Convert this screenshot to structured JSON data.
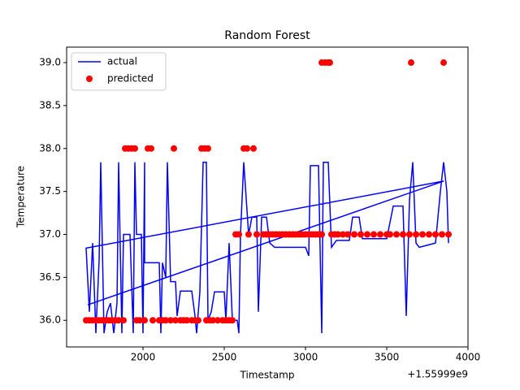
{
  "chart_data": {
    "type": "line",
    "title": "Random Forest",
    "x_label": "Timestamp",
    "y_label": "Temperature",
    "x_offset_label": "+1.55999e9",
    "xlim": [
      1530,
      4000
    ],
    "ylim": [
      35.69,
      39.18
    ],
    "xticks": [
      2000,
      2500,
      3000,
      3500,
      4000
    ],
    "yticks": [
      {
        "value": 36,
        "label": "36.0"
      },
      36.5,
      {
        "value": 37,
        "label": "37.0"
      },
      37.5,
      {
        "value": 38,
        "label": "38.0"
      },
      38.5,
      {
        "value": 39,
        "label": "39.0"
      }
    ],
    "legend": "upper left",
    "series": [
      {
        "name": "actual",
        "type": "line",
        "color": "#0000ff",
        "x": [
          1660,
          3850,
          1650,
          1670,
          1690,
          1710,
          1730,
          1740,
          1760,
          1780,
          1800,
          1820,
          1840,
          1850,
          1870,
          1880,
          1920,
          1940,
          1950,
          1960,
          1990,
          2000,
          2010,
          2010,
          2100,
          2110,
          2120,
          2140,
          2150,
          2170,
          2200,
          2210,
          2230,
          2300,
          2320,
          2330,
          2350,
          2370,
          2390,
          2400,
          2420,
          2440,
          2500,
          2510,
          2530,
          2550,
          2580,
          2590,
          2600,
          2620,
          2650,
          2670,
          2700,
          2710,
          2730,
          2760,
          2780,
          2810,
          3000,
          3020,
          3030,
          3080,
          3100,
          3110,
          3140,
          3160,
          3190,
          3270,
          3290,
          3330,
          3350,
          3500,
          3540,
          3600,
          3620,
          3640,
          3660,
          3680,
          3700,
          3800,
          3830,
          3850,
          3870,
          3880
        ],
        "values": [
          36.18,
          37.62,
          36.84,
          36.1,
          36.9,
          35.85,
          36.7,
          37.84,
          35.85,
          36.1,
          36.2,
          35.85,
          36.2,
          37.84,
          35.85,
          37.0,
          37.0,
          35.85,
          37.84,
          37.0,
          37.0,
          35.85,
          37.84,
          36.67,
          36.67,
          35.85,
          36.67,
          36.5,
          37.84,
          36.45,
          36.45,
          36.05,
          36.34,
          36.34,
          36.05,
          35.85,
          36.33,
          37.84,
          37.84,
          36.0,
          36.1,
          36.33,
          36.33,
          36.0,
          36.9,
          36.0,
          36.0,
          35.85,
          37.0,
          37.84,
          37.0,
          37.2,
          37.2,
          36.1,
          37.2,
          37.2,
          36.9,
          36.85,
          36.85,
          36.75,
          37.8,
          37.8,
          35.85,
          37.84,
          37.84,
          36.85,
          36.93,
          36.93,
          37.2,
          37.2,
          36.95,
          36.95,
          37.33,
          37.33,
          36.05,
          37.4,
          37.84,
          36.9,
          36.85,
          36.9,
          37.5,
          37.84,
          37.5,
          36.9
        ]
      },
      {
        "name": "predicted",
        "type": "scatter",
        "color": "#ff0000",
        "x": [
          1650,
          1670,
          1690,
          1710,
          1730,
          1750,
          1770,
          1790,
          1810,
          1830,
          1850,
          1880,
          1960,
          1980,
          2010,
          2060,
          2100,
          2120,
          2140,
          2170,
          2200,
          2230,
          2250,
          2270,
          2300,
          2320,
          2340,
          2390,
          2410,
          2430,
          2460,
          2490,
          2510,
          2530,
          2550,
          1890,
          1910,
          1930,
          1950,
          2030,
          2050,
          2190,
          2360,
          2380,
          2400,
          2620,
          2640,
          2680,
          2570,
          2590,
          2650,
          2700,
          2740,
          2760,
          2780,
          2800,
          2820,
          2840,
          2860,
          2880,
          2900,
          2920,
          2940,
          2960,
          2980,
          3000,
          3020,
          3040,
          3060,
          3080,
          3100,
          3160,
          3180,
          3200,
          3230,
          3260,
          3300,
          3340,
          3380,
          3420,
          3460,
          3500,
          3520,
          3560,
          3600,
          3640,
          3680,
          3720,
          3760,
          3800,
          3840,
          3880,
          3100,
          3120,
          3140,
          3150,
          3650,
          3850
        ],
        "values": [
          36,
          36,
          36,
          36,
          36,
          36,
          36,
          36,
          36,
          36,
          36,
          36,
          36,
          36,
          36,
          36,
          36,
          36,
          36,
          36,
          36,
          36,
          36,
          36,
          36,
          36,
          36,
          36,
          36,
          36,
          36,
          36,
          36,
          36,
          36,
          38,
          38,
          38,
          38,
          38,
          38,
          38,
          38,
          38,
          38,
          38,
          38,
          38,
          37,
          37,
          37,
          37,
          37,
          37,
          37,
          37,
          37,
          37,
          37,
          37,
          37,
          37,
          37,
          37,
          37,
          37,
          37,
          37,
          37,
          37,
          37,
          37,
          37,
          37,
          37,
          37,
          37,
          37,
          37,
          37,
          37,
          37,
          37,
          37,
          37,
          37,
          37,
          37,
          37,
          37,
          37,
          37,
          39,
          39,
          39,
          39,
          39,
          39
        ]
      }
    ]
  }
}
